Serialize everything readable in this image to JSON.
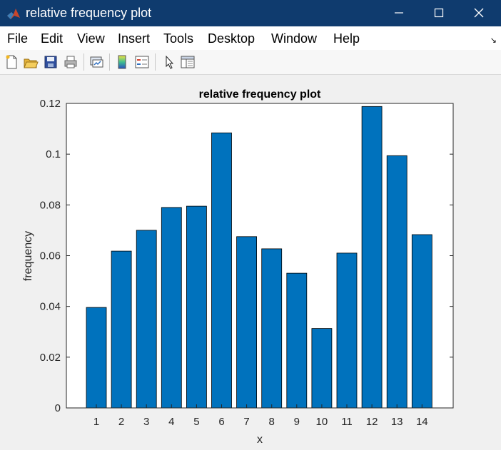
{
  "window": {
    "title": "relative frequency plot"
  },
  "menu": {
    "items": [
      "File",
      "Edit",
      "View",
      "Insert",
      "Tools",
      "Desktop",
      "Window",
      "Help"
    ]
  },
  "toolbar": {
    "icons": [
      "new-figure-icon",
      "open-file-icon",
      "save-icon",
      "print-icon",
      "link-plot-icon",
      "colorbar-icon",
      "legend-icon",
      "pointer-icon",
      "property-inspector-icon"
    ]
  },
  "colors": {
    "titlebar": "#0f3b6e",
    "bar": "#0072bd",
    "axes_bg": "#ffffff",
    "figure_bg": "#f0f0f0"
  },
  "chart_data": {
    "type": "bar",
    "title": "relative frequency plot",
    "xlabel": "x",
    "ylabel": "frequency",
    "categories": [
      "1",
      "2",
      "3",
      "4",
      "5",
      "6",
      "7",
      "8",
      "9",
      "10",
      "11",
      "12",
      "13",
      "14"
    ],
    "values": [
      0.0396,
      0.0618,
      0.07,
      0.079,
      0.0795,
      0.1084,
      0.0675,
      0.0627,
      0.0531,
      0.0313,
      0.061,
      0.1188,
      0.0994,
      0.0683
    ],
    "ylim": [
      0,
      0.12
    ],
    "yticks": [
      "0",
      "0.02",
      "0.04",
      "0.06",
      "0.08",
      "0.1",
      "0.12"
    ],
    "grid": false
  }
}
